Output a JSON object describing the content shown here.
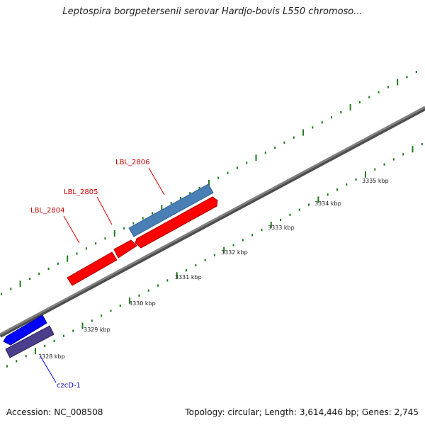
{
  "title": "Leptospira borgpetersenii serovar Hardjo-bovis L550 chromoso...",
  "footer": {
    "accession": "Accession: NC_008508",
    "stats": "Topology: circular; Length: 3,614,446 bp; Genes: 2,745"
  },
  "colors": {
    "backbone": "#808080",
    "tick": "#1b7a1b",
    "gene_forward": "#4a7fb5",
    "gene_reverse": "#ff0000",
    "gene_blue": "#0000ff",
    "gene_navy": "#4b3f8c",
    "label_red": "#cc0000",
    "label_blue": "#0000cc"
  },
  "scale": {
    "unit": "kbp",
    "labels": [
      "3328 kbp",
      "3329 kbp",
      "3330 kbp",
      "3331 kbp",
      "3332 kbp",
      "3333 kbp",
      "3334 kbp",
      "3335 kbp"
    ]
  },
  "genes": [
    {
      "name": "LBL_2804",
      "label_color": "#cc0000"
    },
    {
      "name": "LBL_2805",
      "label_color": "#cc0000"
    },
    {
      "name": "LBL_2806",
      "label_color": "#cc0000"
    },
    {
      "name": "czcD-1",
      "label_color": "#0000cc"
    }
  ]
}
